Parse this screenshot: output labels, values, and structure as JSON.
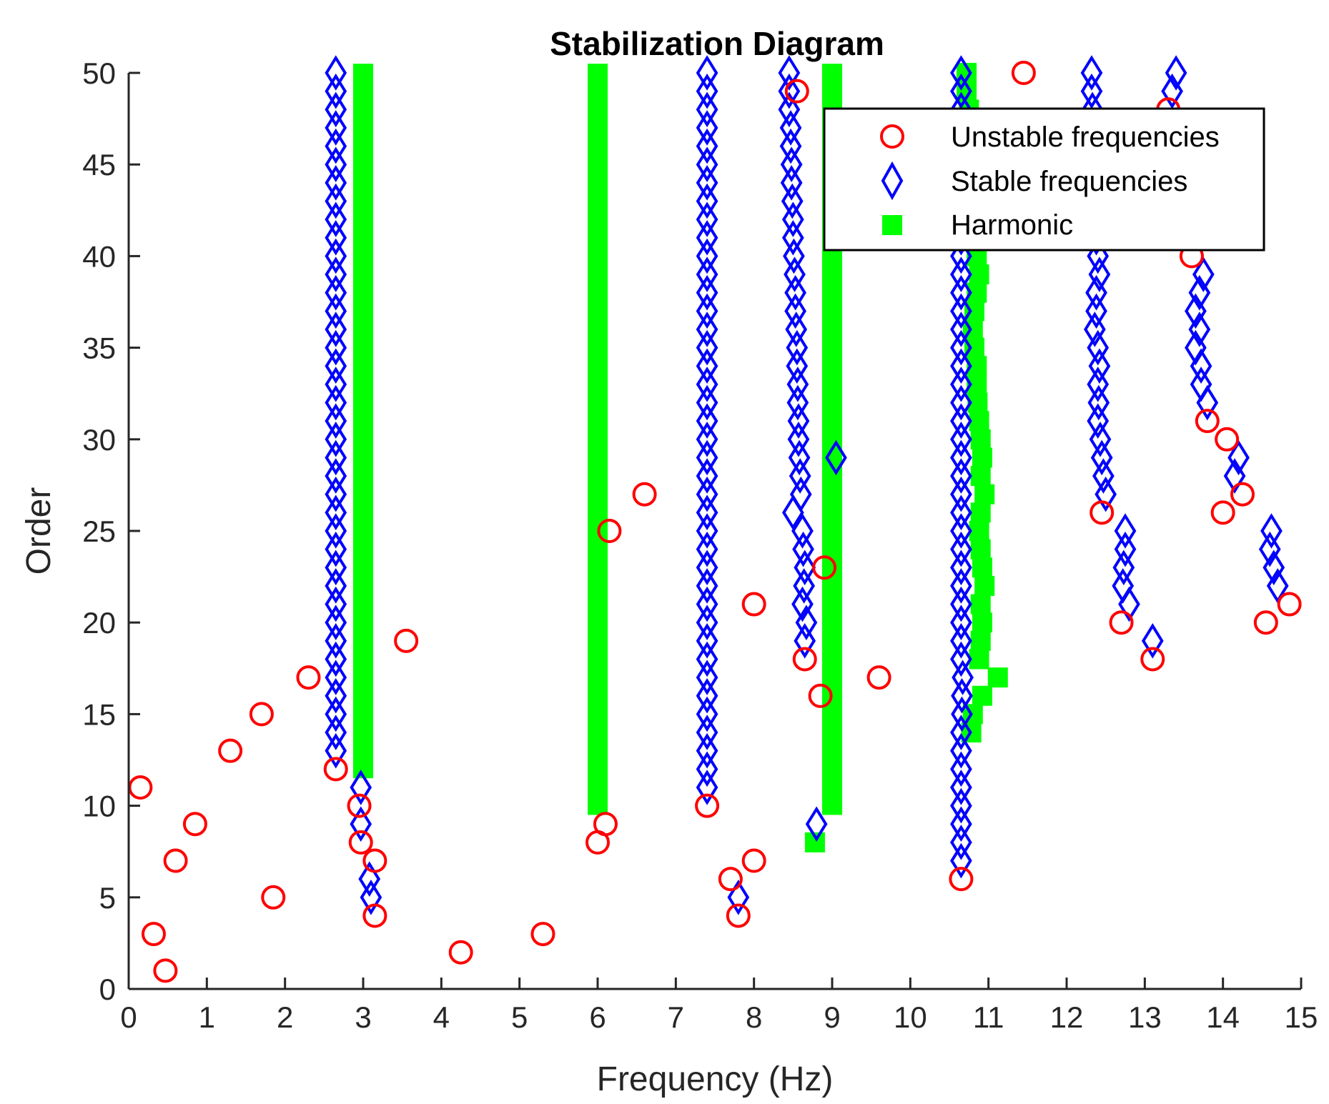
{
  "chart_data": {
    "type": "scatter",
    "title": "Stabilization Diagram",
    "xlabel": "Frequency (Hz)",
    "ylabel": "Order",
    "xlim": [
      0,
      15
    ],
    "ylim": [
      0,
      50
    ],
    "xticks": [
      0,
      1,
      2,
      3,
      4,
      5,
      6,
      7,
      8,
      9,
      10,
      11,
      12,
      13,
      14,
      15
    ],
    "yticks": [
      0,
      5,
      10,
      15,
      20,
      25,
      30,
      35,
      40,
      45,
      50
    ],
    "legend_position": "top-right",
    "colors": {
      "unstable": "#ff0000",
      "stable": "#0000ff",
      "harmonic": "#00ff00",
      "axis": "#262626"
    },
    "series": [
      {
        "name": "Unstable frequencies",
        "marker": "circle",
        "points": [
          [
            0.15,
            11
          ],
          [
            0.32,
            3
          ],
          [
            0.47,
            1
          ],
          [
            0.6,
            7
          ],
          [
            0.85,
            9
          ],
          [
            1.3,
            13
          ],
          [
            1.7,
            15
          ],
          [
            1.85,
            5
          ],
          [
            2.3,
            17
          ],
          [
            2.65,
            12
          ],
          [
            2.95,
            10
          ],
          [
            2.97,
            8
          ],
          [
            3.15,
            7
          ],
          [
            3.15,
            4
          ],
          [
            3.55,
            19
          ],
          [
            4.25,
            2
          ],
          [
            5.3,
            3
          ],
          [
            6.0,
            8
          ],
          [
            6.1,
            9
          ],
          [
            6.15,
            25
          ],
          [
            6.6,
            27
          ],
          [
            7.4,
            10
          ],
          [
            7.7,
            6
          ],
          [
            7.8,
            4
          ],
          [
            8.0,
            21
          ],
          [
            8.0,
            7
          ],
          [
            8.55,
            49
          ],
          [
            8.65,
            18
          ],
          [
            8.85,
            16
          ],
          [
            8.9,
            23
          ],
          [
            9.6,
            17
          ],
          [
            10.65,
            6
          ],
          [
            11.45,
            50
          ],
          [
            12.45,
            26
          ],
          [
            12.7,
            20
          ],
          [
            13.1,
            18
          ],
          [
            13.3,
            48
          ],
          [
            13.6,
            40
          ],
          [
            13.8,
            31
          ],
          [
            14.0,
            26
          ],
          [
            14.05,
            30
          ],
          [
            14.25,
            27
          ],
          [
            14.55,
            20
          ],
          [
            14.85,
            21
          ]
        ]
      },
      {
        "name": "Stable frequencies",
        "marker": "diamond",
        "points": [
          [
            2.65,
            13
          ],
          [
            2.65,
            14
          ],
          [
            2.65,
            15
          ],
          [
            2.65,
            16
          ],
          [
            2.65,
            17
          ],
          [
            2.65,
            18
          ],
          [
            2.65,
            19
          ],
          [
            2.65,
            20
          ],
          [
            2.65,
            21
          ],
          [
            2.65,
            22
          ],
          [
            2.65,
            23
          ],
          [
            2.65,
            24
          ],
          [
            2.65,
            25
          ],
          [
            2.65,
            26
          ],
          [
            2.65,
            27
          ],
          [
            2.65,
            28
          ],
          [
            2.65,
            29
          ],
          [
            2.65,
            30
          ],
          [
            2.65,
            31
          ],
          [
            2.65,
            32
          ],
          [
            2.65,
            33
          ],
          [
            2.65,
            34
          ],
          [
            2.65,
            35
          ],
          [
            2.65,
            36
          ],
          [
            2.65,
            37
          ],
          [
            2.65,
            38
          ],
          [
            2.65,
            39
          ],
          [
            2.65,
            40
          ],
          [
            2.65,
            41
          ],
          [
            2.65,
            42
          ],
          [
            2.65,
            43
          ],
          [
            2.65,
            44
          ],
          [
            2.65,
            45
          ],
          [
            2.65,
            46
          ],
          [
            2.65,
            47
          ],
          [
            2.65,
            48
          ],
          [
            2.65,
            49
          ],
          [
            2.65,
            50
          ],
          [
            2.97,
            11
          ],
          [
            2.97,
            9
          ],
          [
            3.08,
            6
          ],
          [
            3.1,
            5
          ],
          [
            7.4,
            11
          ],
          [
            7.4,
            12
          ],
          [
            7.4,
            13
          ],
          [
            7.4,
            14
          ],
          [
            7.4,
            15
          ],
          [
            7.4,
            16
          ],
          [
            7.4,
            17
          ],
          [
            7.4,
            18
          ],
          [
            7.4,
            19
          ],
          [
            7.4,
            20
          ],
          [
            7.4,
            21
          ],
          [
            7.4,
            22
          ],
          [
            7.4,
            23
          ],
          [
            7.4,
            24
          ],
          [
            7.4,
            25
          ],
          [
            7.4,
            26
          ],
          [
            7.4,
            27
          ],
          [
            7.4,
            28
          ],
          [
            7.4,
            29
          ],
          [
            7.4,
            30
          ],
          [
            7.4,
            31
          ],
          [
            7.4,
            32
          ],
          [
            7.4,
            33
          ],
          [
            7.4,
            34
          ],
          [
            7.4,
            35
          ],
          [
            7.4,
            36
          ],
          [
            7.4,
            37
          ],
          [
            7.4,
            38
          ],
          [
            7.4,
            39
          ],
          [
            7.4,
            40
          ],
          [
            7.4,
            41
          ],
          [
            7.4,
            42
          ],
          [
            7.4,
            43
          ],
          [
            7.4,
            44
          ],
          [
            7.4,
            45
          ],
          [
            7.4,
            46
          ],
          [
            7.4,
            47
          ],
          [
            7.4,
            48
          ],
          [
            7.4,
            49
          ],
          [
            7.4,
            50
          ],
          [
            7.8,
            5
          ],
          [
            8.45,
            50
          ],
          [
            8.45,
            49
          ],
          [
            8.45,
            48
          ],
          [
            8.47,
            47
          ],
          [
            8.47,
            46
          ],
          [
            8.48,
            45
          ],
          [
            8.48,
            44
          ],
          [
            8.49,
            43
          ],
          [
            8.5,
            42
          ],
          [
            8.5,
            41
          ],
          [
            8.51,
            40
          ],
          [
            8.52,
            39
          ],
          [
            8.53,
            38
          ],
          [
            8.53,
            37
          ],
          [
            8.54,
            36
          ],
          [
            8.55,
            35
          ],
          [
            8.55,
            34
          ],
          [
            8.56,
            33
          ],
          [
            8.56,
            32
          ],
          [
            8.57,
            31
          ],
          [
            8.57,
            30
          ],
          [
            8.58,
            29
          ],
          [
            8.59,
            28
          ],
          [
            8.6,
            27
          ],
          [
            8.5,
            26
          ],
          [
            8.62,
            25
          ],
          [
            8.63,
            24
          ],
          [
            8.65,
            23
          ],
          [
            8.64,
            22
          ],
          [
            8.62,
            21
          ],
          [
            8.67,
            20
          ],
          [
            8.65,
            19
          ],
          [
            8.8,
            9
          ],
          [
            9.05,
            29
          ],
          [
            10.65,
            7
          ],
          [
            10.65,
            8
          ],
          [
            10.65,
            9
          ],
          [
            10.65,
            10
          ],
          [
            10.65,
            11
          ],
          [
            10.65,
            12
          ],
          [
            10.65,
            13
          ],
          [
            10.65,
            14
          ],
          [
            10.66,
            15
          ],
          [
            10.66,
            16
          ],
          [
            10.67,
            17
          ],
          [
            10.65,
            20
          ],
          [
            10.65,
            25
          ],
          [
            10.65,
            30
          ],
          [
            10.65,
            35
          ],
          [
            10.65,
            40
          ],
          [
            10.65,
            45
          ],
          [
            10.65,
            50
          ],
          [
            10.65,
            49
          ],
          [
            10.65,
            48
          ],
          [
            10.65,
            47
          ],
          [
            10.65,
            46
          ],
          [
            10.65,
            44
          ],
          [
            10.65,
            43
          ],
          [
            10.65,
            42
          ],
          [
            10.65,
            41
          ],
          [
            10.65,
            39
          ],
          [
            10.65,
            38
          ],
          [
            10.65,
            37
          ],
          [
            10.65,
            36
          ],
          [
            10.65,
            34
          ],
          [
            10.65,
            33
          ],
          [
            10.65,
            32
          ],
          [
            10.65,
            31
          ],
          [
            10.65,
            29
          ],
          [
            10.65,
            28
          ],
          [
            10.65,
            27
          ],
          [
            10.65,
            26
          ],
          [
            10.65,
            24
          ],
          [
            10.65,
            23
          ],
          [
            10.65,
            22
          ],
          [
            10.65,
            21
          ],
          [
            10.65,
            19
          ],
          [
            10.65,
            18
          ],
          [
            12.32,
            50
          ],
          [
            12.32,
            49
          ],
          [
            12.33,
            48
          ],
          [
            12.34,
            47
          ],
          [
            12.35,
            46
          ],
          [
            12.36,
            45
          ],
          [
            12.36,
            44
          ],
          [
            12.37,
            43
          ],
          [
            12.38,
            42
          ],
          [
            12.38,
            41
          ],
          [
            12.4,
            40
          ],
          [
            12.42,
            39
          ],
          [
            12.38,
            38
          ],
          [
            12.38,
            37
          ],
          [
            12.36,
            36
          ],
          [
            12.4,
            35
          ],
          [
            12.42,
            34
          ],
          [
            12.4,
            33
          ],
          [
            12.41,
            32
          ],
          [
            12.4,
            31
          ],
          [
            12.43,
            30
          ],
          [
            12.45,
            29
          ],
          [
            12.47,
            28
          ],
          [
            12.5,
            27
          ],
          [
            12.75,
            25
          ],
          [
            12.75,
            24
          ],
          [
            12.73,
            23
          ],
          [
            12.72,
            22
          ],
          [
            12.8,
            21
          ],
          [
            13.1,
            19
          ],
          [
            13.4,
            50
          ],
          [
            13.35,
            49
          ],
          [
            13.75,
            39
          ],
          [
            13.7,
            38
          ],
          [
            13.65,
            37
          ],
          [
            13.7,
            36
          ],
          [
            13.65,
            35
          ],
          [
            13.72,
            34
          ],
          [
            13.72,
            33
          ],
          [
            13.8,
            32
          ],
          [
            14.2,
            29
          ],
          [
            14.15,
            28
          ],
          [
            14.62,
            25
          ],
          [
            14.6,
            24
          ],
          [
            14.65,
            23
          ],
          [
            14.7,
            22
          ]
        ]
      },
      {
        "name": "Harmonic",
        "marker": "square",
        "bars": [
          {
            "x": 3.0,
            "y0": 11.5,
            "y1": 50.5
          },
          {
            "x": 6.0,
            "y0": 9.5,
            "y1": 50.5
          },
          {
            "x": 9.0,
            "y0": 9.5,
            "y1": 50.5
          }
        ],
        "points": [
          [
            8.78,
            8
          ],
          [
            10.72,
            50
          ],
          [
            10.72,
            49
          ],
          [
            10.75,
            48
          ],
          [
            10.78,
            47
          ],
          [
            10.78,
            46
          ],
          [
            10.8,
            45
          ],
          [
            10.8,
            44
          ],
          [
            10.8,
            43
          ],
          [
            10.8,
            42
          ],
          [
            10.82,
            41
          ],
          [
            10.85,
            40
          ],
          [
            10.88,
            39
          ],
          [
            10.85,
            38
          ],
          [
            10.82,
            37
          ],
          [
            10.8,
            36
          ],
          [
            10.82,
            35
          ],
          [
            10.85,
            34
          ],
          [
            10.85,
            33
          ],
          [
            10.86,
            32
          ],
          [
            10.88,
            31
          ],
          [
            10.9,
            30
          ],
          [
            10.92,
            29
          ],
          [
            10.9,
            28
          ],
          [
            10.95,
            27
          ],
          [
            10.9,
            26
          ],
          [
            10.88,
            25
          ],
          [
            10.9,
            24
          ],
          [
            10.92,
            23
          ],
          [
            10.95,
            22
          ],
          [
            10.9,
            21
          ],
          [
            10.92,
            20
          ],
          [
            10.9,
            19
          ],
          [
            10.88,
            18
          ],
          [
            11.12,
            17
          ],
          [
            10.92,
            16
          ],
          [
            10.8,
            15
          ],
          [
            10.78,
            14
          ]
        ]
      }
    ]
  }
}
